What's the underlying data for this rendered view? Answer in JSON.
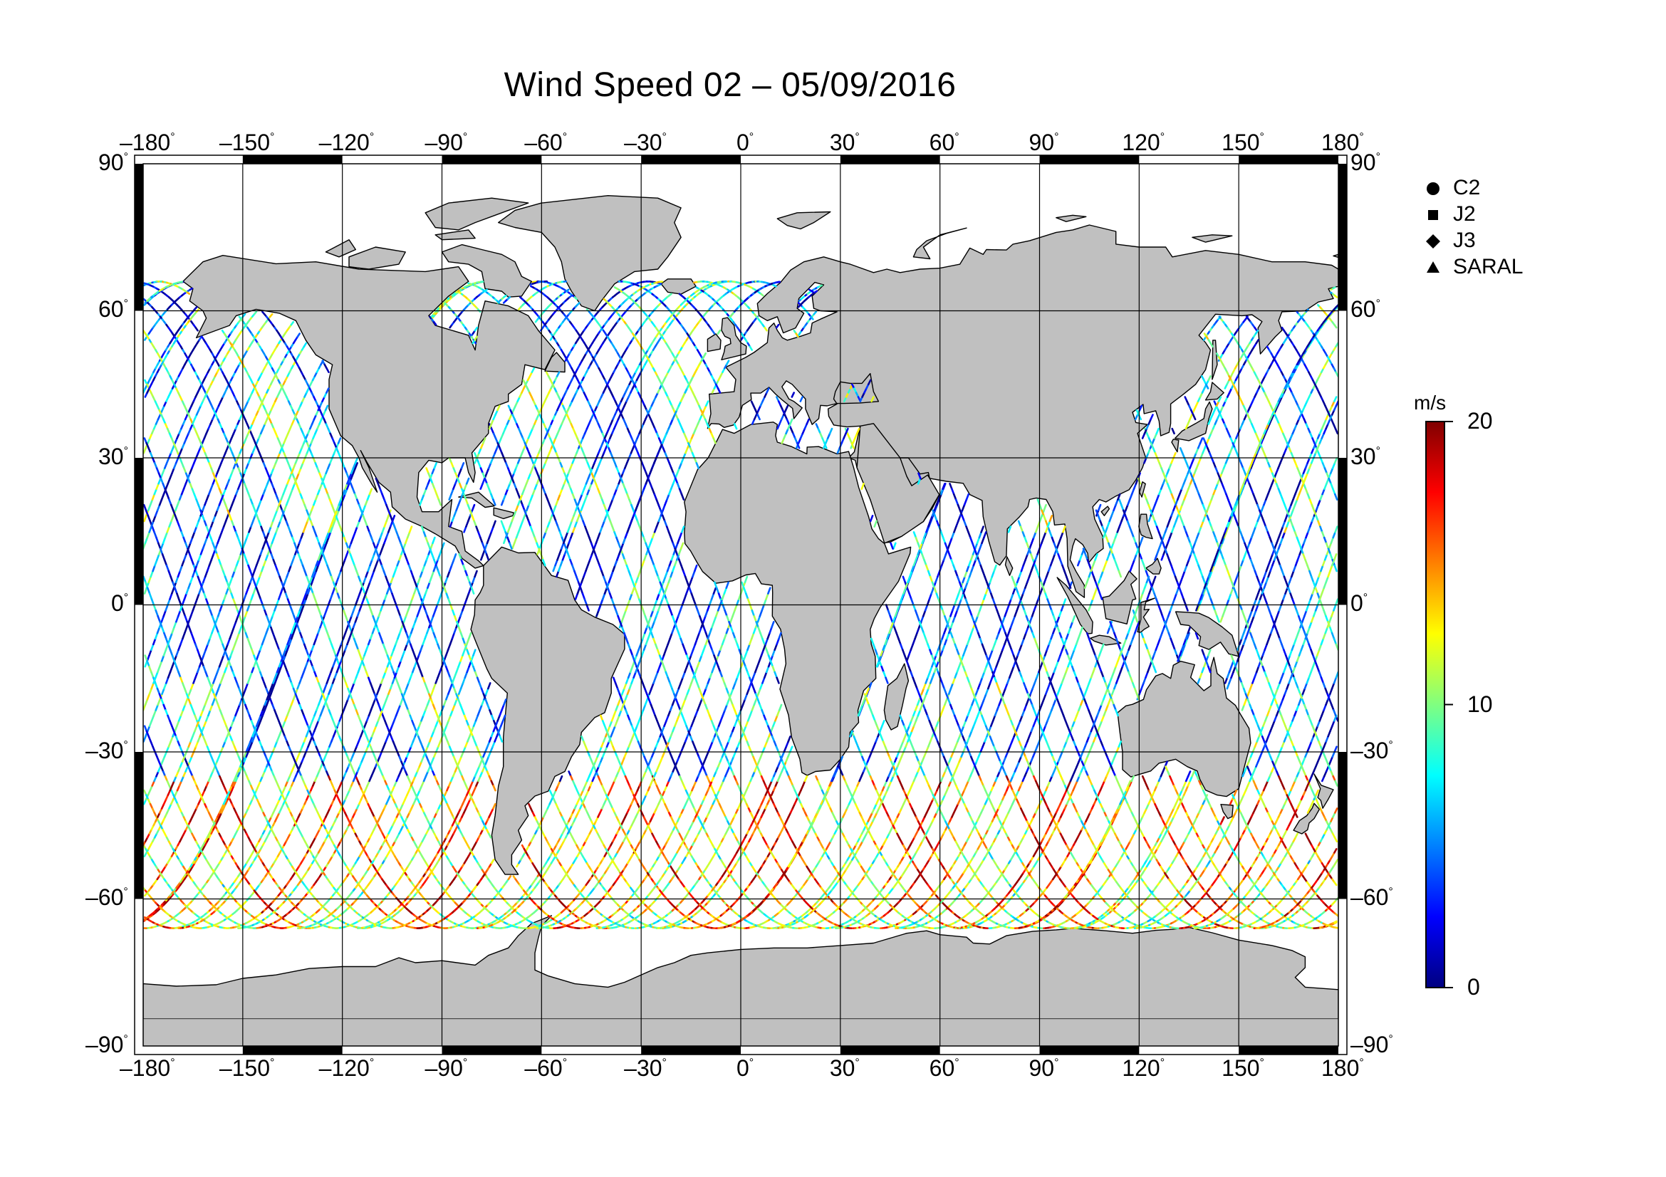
{
  "title": "Wind Speed 02 – 05/09/2016",
  "lon_ticks": [
    "–180",
    "–150",
    "–120",
    "–90",
    "–60",
    "–30",
    "0",
    "30",
    "60",
    "90",
    "120",
    "150",
    "180"
  ],
  "lat_ticks": [
    "90",
    "60",
    "30",
    "0",
    "–30",
    "–60",
    "–90"
  ],
  "degree_symbol": "°",
  "legend": [
    {
      "label": "C2",
      "symbol": "circle"
    },
    {
      "label": "J2",
      "symbol": "square"
    },
    {
      "label": "J3",
      "symbol": "diamond"
    },
    {
      "label": "SARAL",
      "symbol": "triangle"
    }
  ],
  "colorbar": {
    "unit": "m/s",
    "min": 0,
    "max": 20,
    "ticks": [
      "0",
      "10",
      "20"
    ],
    "colormap": [
      "#000080",
      "#0000ff",
      "#0080ff",
      "#00ffff",
      "#80ff80",
      "#ffff00",
      "#ff8000",
      "#ff0000",
      "#800000"
    ]
  },
  "colors": {
    "land": "#c0c0c0",
    "ocean": "#ffffff",
    "antarctica": "#c0c0c0",
    "grid": "#000000"
  }
}
